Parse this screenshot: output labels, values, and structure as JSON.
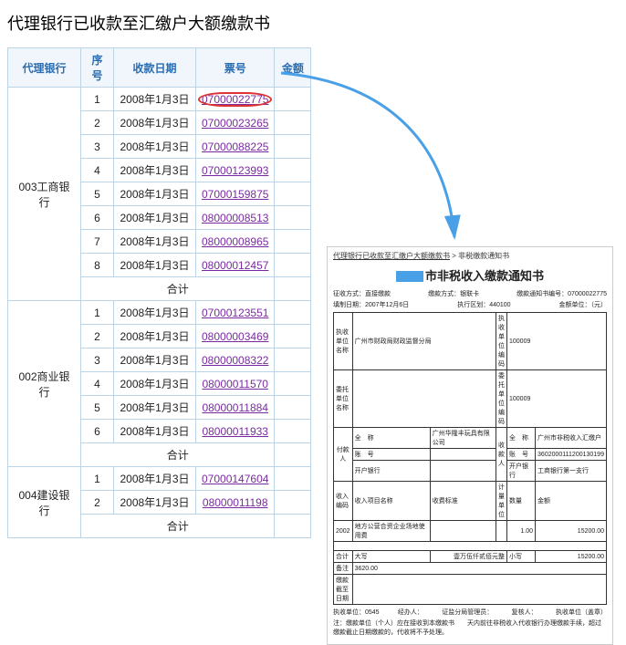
{
  "title": "代理银行已收款至汇缴户大额缴款书",
  "table": {
    "headers": [
      "代理银行",
      "序号",
      "收款日期",
      "票号",
      "金额"
    ],
    "groups": [
      {
        "bank": "003工商银行",
        "rows": [
          {
            "seq": "1",
            "date": "2008年1月3日",
            "ticket": "07000022775",
            "circled": true
          },
          {
            "seq": "2",
            "date": "2008年1月3日",
            "ticket": "07000023265"
          },
          {
            "seq": "3",
            "date": "2008年1月3日",
            "ticket": "07000088225"
          },
          {
            "seq": "4",
            "date": "2008年1月3日",
            "ticket": "07000123993"
          },
          {
            "seq": "5",
            "date": "2008年1月3日",
            "ticket": "07000159875"
          },
          {
            "seq": "6",
            "date": "2008年1月3日",
            "ticket": "08000008513"
          },
          {
            "seq": "7",
            "date": "2008年1月3日",
            "ticket": "08000008965"
          },
          {
            "seq": "8",
            "date": "2008年1月3日",
            "ticket": "08000012457"
          }
        ],
        "total_label": "合计"
      },
      {
        "bank": "002商业银行",
        "rows": [
          {
            "seq": "1",
            "date": "2008年1月3日",
            "ticket": "07000123551"
          },
          {
            "seq": "2",
            "date": "2008年1月3日",
            "ticket": "08000003469"
          },
          {
            "seq": "3",
            "date": "2008年1月3日",
            "ticket": "08000008322"
          },
          {
            "seq": "4",
            "date": "2008年1月3日",
            "ticket": "08000011570"
          },
          {
            "seq": "5",
            "date": "2008年1月3日",
            "ticket": "08000011884"
          },
          {
            "seq": "6",
            "date": "2008年1月3日",
            "ticket": "08000011933"
          }
        ],
        "total_label": "合计"
      },
      {
        "bank": "004建设银行",
        "rows": [
          {
            "seq": "1",
            "date": "2008年1月3日",
            "ticket": "07000147604"
          },
          {
            "seq": "2",
            "date": "2008年1月3日",
            "ticket": "08000011198"
          }
        ],
        "total_label": "合计"
      }
    ]
  },
  "doc": {
    "crumb_link": "代理银行已收款至汇缴户大额缴款书",
    "crumb_sep": " > ",
    "crumb_tail": "非税缴款通知书",
    "title_prefix": "",
    "title": "市非税收入缴款通知书",
    "meta1": {
      "l": "征收方式：直接缴款",
      "m": "缴款方式：银联卡",
      "r": "缴款通知书编号：07000022775"
    },
    "meta2": {
      "l": "填制日期：2007年12月6日",
      "m": "执行区划：440100",
      "r": "金额单位：（元）"
    },
    "r1": {
      "a": "执收单位名称",
      "b": "广州市财政局财政监督分局",
      "c": "执收单位编码",
      "d": "100009"
    },
    "r2": {
      "a": "委托单位名称",
      "b": "",
      "c": "委托单位编码",
      "d": "100009"
    },
    "side_left": "付款人",
    "side_right": "收款人",
    "p1": {
      "a": "全　称",
      "b": "广州华隆丰玩具有限公司",
      "c": "全　称",
      "d": "广州市非税收入汇缴户"
    },
    "p2": {
      "a": "账　号",
      "b": "",
      "c": "账　号",
      "d": "3602000111200130199"
    },
    "p3": {
      "a": "开户银行",
      "b": "",
      "c": "开户银行",
      "d": "工商银行第一支行"
    },
    "h": {
      "a": "收入编码",
      "b": "收入项目名称",
      "c": "收费标准",
      "d": "计量单位",
      "e": "数量",
      "f": "金额"
    },
    "d1": {
      "a": "2002",
      "b": "地方公营合资企业场地使用费",
      "c": "",
      "d": "",
      "e": "1.00",
      "f": "15200.00"
    },
    "tot": {
      "a": "合计",
      "b": "大写",
      "c": "壹万伍仟贰佰元整",
      "d": "小写",
      "e": "15200.00"
    },
    "note": {
      "a": "备注",
      "b": "3620.00"
    },
    "due": {
      "a": "缴款截至日期",
      "b": ""
    },
    "f1": {
      "a": "执收单位：0545",
      "b": "经办人：",
      "c": "证监分局管理员：",
      "d": "复核人：",
      "e": "执收单位（盖章）"
    },
    "f2": "注：缴款单位（个人）应在接收到本缴款书　　天内前往非税收入代收银行办理缴款手续，超过缴款截止日期缴款的，代收将不予处理。"
  },
  "colors": {
    "header_bg": "#f0f6fb",
    "header_fg": "#2a6db3",
    "border": "#bcd4e8",
    "link": "#7a2aa0",
    "circle": "#d33",
    "arrow": "#4aa0e6"
  },
  "col_widths": {
    "bank": 80,
    "seq": 36,
    "date": 90,
    "ticket": 86,
    "amount": 40
  }
}
